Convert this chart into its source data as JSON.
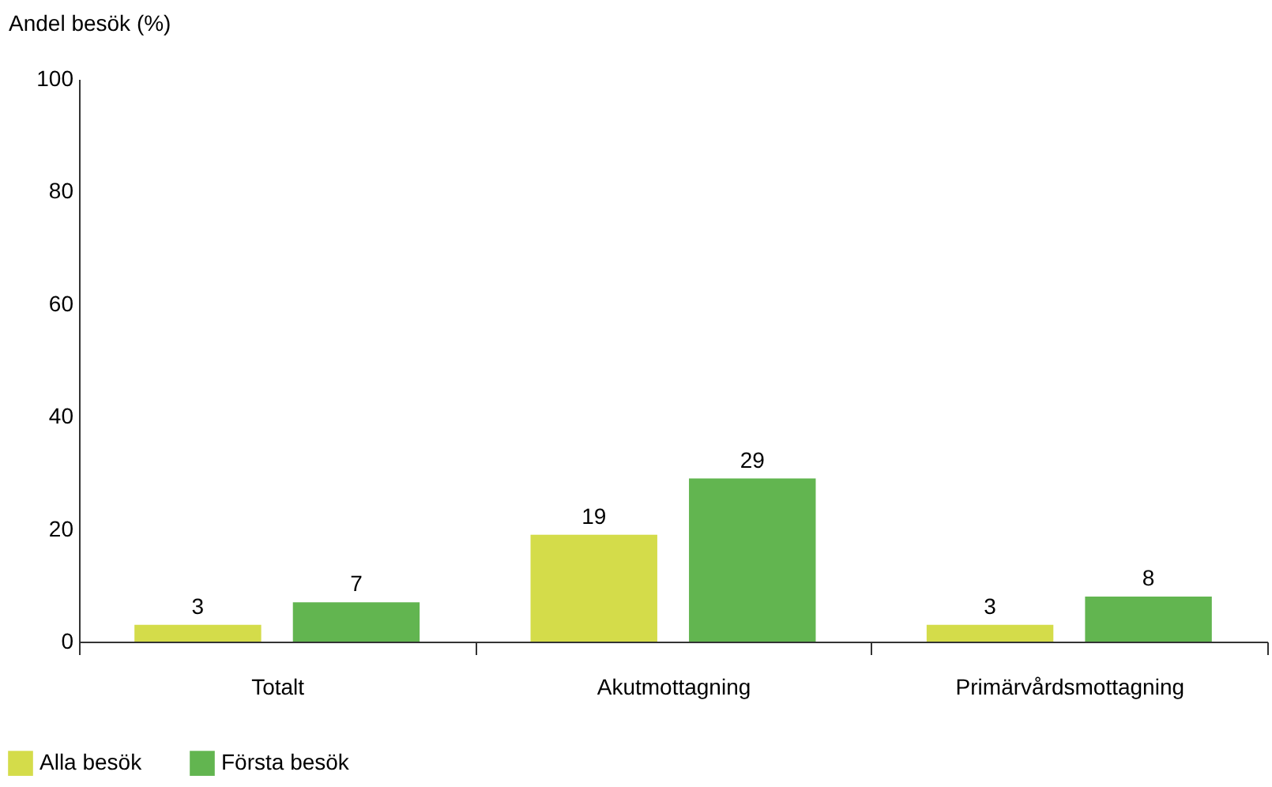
{
  "chart_data": {
    "type": "bar",
    "ylabel": "Andel besök (%)",
    "categories": [
      "Totalt",
      "Akutmottagning",
      "Primärvårdsmottagning"
    ],
    "series": [
      {
        "name": "Alla besök",
        "color": "#d4dc4a",
        "values": [
          3,
          19,
          3
        ]
      },
      {
        "name": "Första besök",
        "color": "#62b550",
        "values": [
          7,
          29,
          8
        ]
      }
    ],
    "ylim": [
      0,
      100
    ],
    "yticks": [
      0,
      20,
      40,
      60,
      80,
      100
    ],
    "data_labels": true,
    "legend": "bottom left"
  }
}
